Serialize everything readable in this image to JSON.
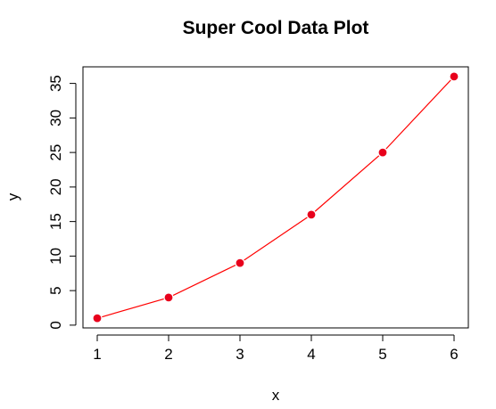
{
  "chart_data": {
    "type": "line",
    "title": "Super Cool Data Plot",
    "xlabel": "x",
    "ylabel": "y",
    "x": [
      1,
      2,
      3,
      4,
      5,
      6
    ],
    "series": [
      {
        "values": [
          1,
          4,
          9,
          16,
          25,
          36
        ],
        "color": "#ff0000",
        "marker": "circle",
        "marker_color": "#e8001c"
      }
    ],
    "xlim": [
      0.8,
      6.2
    ],
    "ylim": [
      -0.4,
      37.4
    ],
    "xticks": [
      "1",
      "2",
      "3",
      "4",
      "5",
      "6"
    ],
    "yticks": [
      "0",
      "5",
      "10",
      "15",
      "20",
      "25",
      "30",
      "35"
    ],
    "grid": false,
    "legend": "none"
  }
}
